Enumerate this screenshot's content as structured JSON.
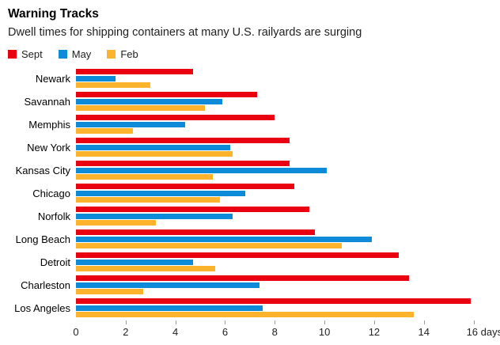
{
  "header": {
    "title": "Warning Tracks",
    "subtitle": "Dwell times for shipping containers at many U.S. railyards are surging"
  },
  "legend": [
    {
      "label": "Sept",
      "color": "#e90011"
    },
    {
      "label": "May",
      "color": "#0e8bd8"
    },
    {
      "label": "Feb",
      "color": "#fdb32b"
    }
  ],
  "chart_data": {
    "type": "bar",
    "orientation": "horizontal",
    "title": "Warning Tracks",
    "subtitle": "Dwell times for shipping containers at many U.S. railyards are surging",
    "categories": [
      "Newark",
      "Savannah",
      "Memphis",
      "New York",
      "Kansas City",
      "Chicago",
      "Norfolk",
      "Long Beach",
      "Detroit",
      "Charleston",
      "Los Angeles"
    ],
    "series": [
      {
        "name": "Sept",
        "color": "#e90011",
        "values": [
          4.7,
          7.3,
          8.0,
          8.6,
          8.6,
          8.8,
          9.4,
          9.6,
          13.0,
          13.4,
          15.9
        ]
      },
      {
        "name": "May",
        "color": "#0e8bd8",
        "values": [
          1.6,
          5.9,
          4.4,
          6.2,
          10.1,
          6.8,
          6.3,
          11.9,
          4.7,
          7.4,
          7.5
        ]
      },
      {
        "name": "Feb",
        "color": "#fdb32b",
        "values": [
          3.0,
          5.2,
          2.3,
          6.3,
          5.5,
          5.8,
          3.2,
          10.7,
          5.6,
          2.7,
          13.6
        ]
      }
    ],
    "xlabel": "",
    "ylabel": "",
    "x_unit": "days",
    "x_ticks": [
      0,
      2,
      4,
      6,
      8,
      10,
      12,
      14,
      16
    ],
    "xlim": [
      0,
      17
    ],
    "grid": false,
    "legend_position": "top-left"
  }
}
